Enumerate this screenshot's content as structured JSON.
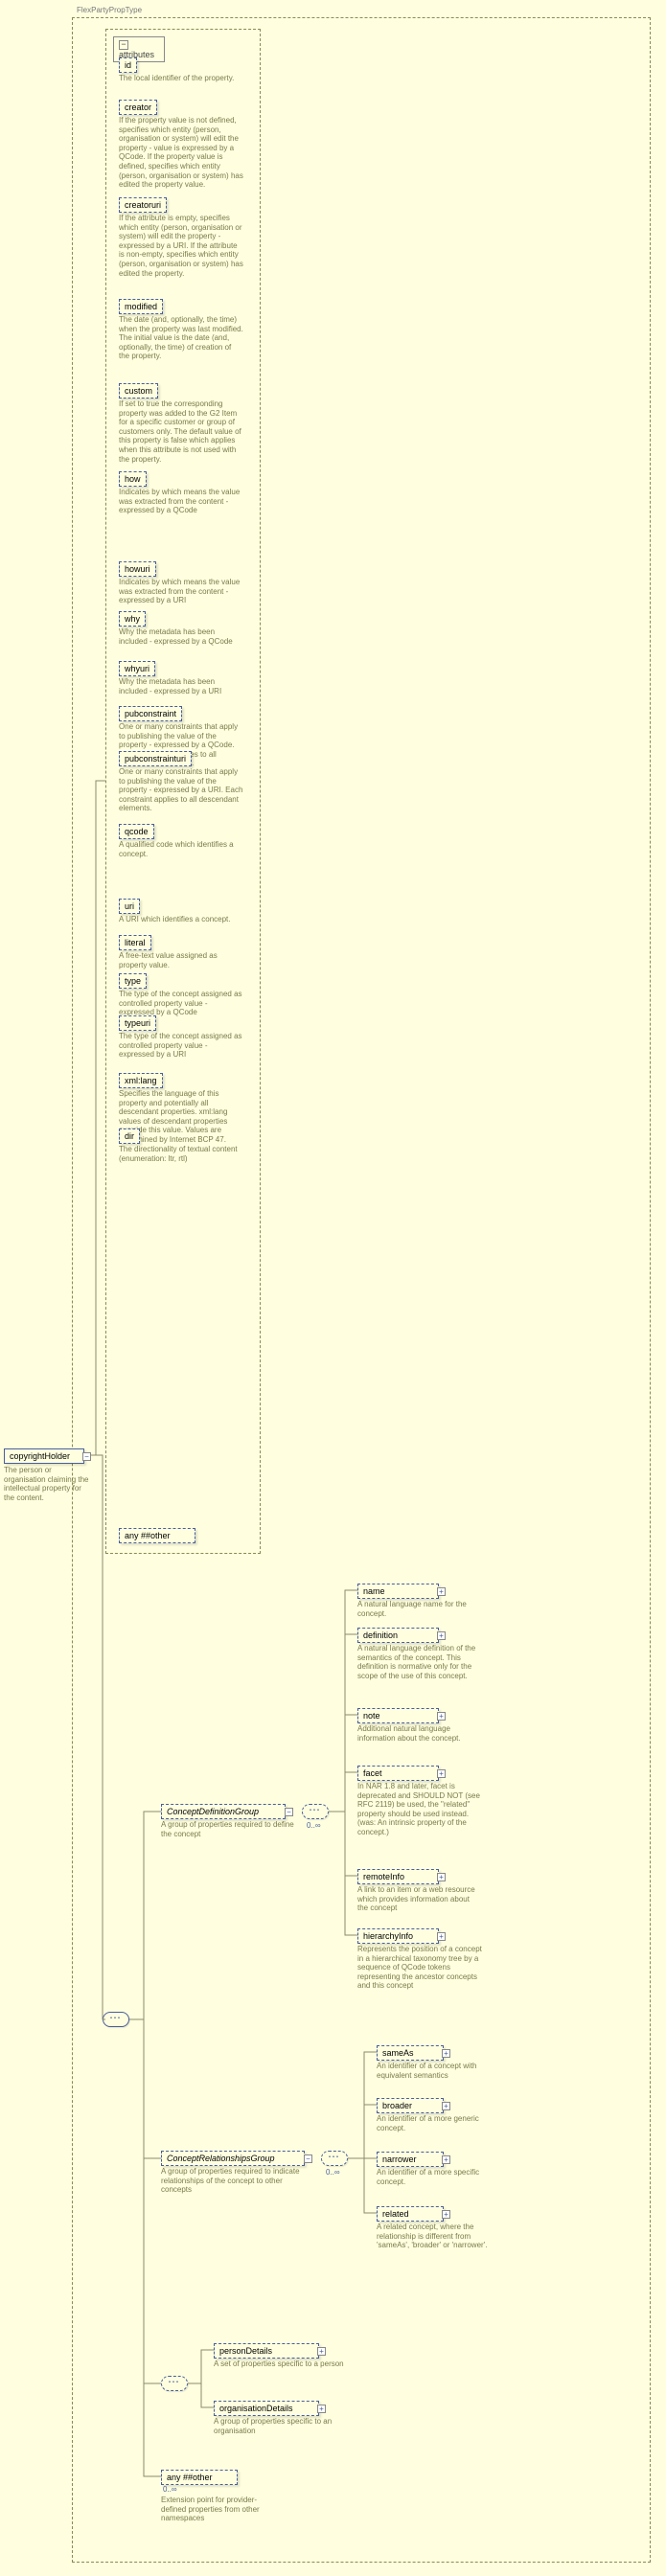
{
  "type_label": "FlexPartyPropType",
  "root": {
    "name": "copyrightHolder",
    "desc": "The person or organisation claiming the intellectual property for the content."
  },
  "attributes_label": "attributes",
  "attributes": [
    {
      "name": "id",
      "desc": "The local identifier of the property."
    },
    {
      "name": "creator",
      "desc": "If the property value is not defined, specifies which entity (person, organisation or system) will edit the property - value is expressed by a QCode. If the property value is defined, specifies which entity (person, organisation or system) has edited the property value."
    },
    {
      "name": "creatoruri",
      "desc": "If the attribute is empty, specifies which entity (person, organisation or system) will edit the property - expressed by a URI. If the attribute is non-empty, specifies which entity (person, organisation or system) has edited the property."
    },
    {
      "name": "modified",
      "desc": "The date (and, optionally, the time) when the property was last modified. The initial value is the date (and, optionally, the time) of creation of the property."
    },
    {
      "name": "custom",
      "desc": "If set to true the corresponding property was added to the G2 Item for a specific customer or group of customers only. The default value of this property is false which applies when this attribute is not used with the property."
    },
    {
      "name": "how",
      "desc": "Indicates by which means the value was extracted from the content - expressed by a QCode"
    },
    {
      "name": "howuri",
      "desc": "Indicates by which means the value was extracted from the content - expressed by a URI"
    },
    {
      "name": "why",
      "desc": "Why the metadata has been included - expressed by a QCode"
    },
    {
      "name": "whyuri",
      "desc": "Why the metadata has been included - expressed by a URI"
    },
    {
      "name": "pubconstraint",
      "desc": "One or many constraints that apply to publishing the value of the property - expressed by a QCode. Each constraint applies to all descendant elements."
    },
    {
      "name": "pubconstrainturi",
      "desc": "One or many constraints that apply to publishing the value of the property - expressed by a URI. Each constraint applies to all descendant elements."
    },
    {
      "name": "qcode",
      "desc": "A qualified code which identifies a concept."
    },
    {
      "name": "uri",
      "desc": "A URI which identifies a concept."
    },
    {
      "name": "literal",
      "desc": "A free-text value assigned as property value."
    },
    {
      "name": "type",
      "desc": "The type of the concept assigned as controlled property value - expressed by a QCode"
    },
    {
      "name": "typeuri",
      "desc": "The type of the concept assigned as controlled property value - expressed by a URI"
    },
    {
      "name": "xml:lang",
      "desc": "Specifies the language of this property and potentially all descendant properties. xml:lang values of descendant properties override this value. Values are determined by Internet BCP 47."
    },
    {
      "name": "dir",
      "desc": "The directionality of textual content (enumeration: ltr, rtl)"
    }
  ],
  "any_other_attr": "any ##other",
  "groups": {
    "def": {
      "name": "ConceptDefinitionGroup",
      "desc": "A group of properties required to define the concept"
    },
    "rel": {
      "name": "ConceptRelationshipsGroup",
      "desc": "A group of properties required to indicate relationships of the concept to other concepts"
    }
  },
  "def_children": [
    {
      "name": "name",
      "desc": "A natural language name for the concept."
    },
    {
      "name": "definition",
      "desc": "A natural language definition of the semantics of the concept. This definition is normative only for the scope of the use of this concept."
    },
    {
      "name": "note",
      "desc": "Additional natural language information about the concept."
    },
    {
      "name": "facet",
      "desc": "In NAR 1.8 and later, facet is deprecated and SHOULD NOT (see RFC 2119) be used, the \"related\" property should be used instead. (was: An intrinsic property of the concept.)"
    },
    {
      "name": "remoteInfo",
      "desc": "A link to an item or a web resource which provides information about the concept"
    },
    {
      "name": "hierarchyInfo",
      "desc": "Represents the position of a concept in a hierarchical taxonomy tree by a sequence of QCode tokens representing the ancestor concepts and this concept"
    }
  ],
  "rel_children": [
    {
      "name": "sameAs",
      "desc": "An identifier of a concept with equivalent semantics"
    },
    {
      "name": "broader",
      "desc": "An identifier of a more generic concept."
    },
    {
      "name": "narrower",
      "desc": "An identifier of a more specific concept."
    },
    {
      "name": "related",
      "desc": "A related concept, where the relationship is different from 'sameAs', 'broader' or 'narrower'."
    }
  ],
  "choice_children": [
    {
      "name": "personDetails",
      "desc": "A set of properties specific to a person"
    },
    {
      "name": "organisationDetails",
      "desc": "A group of properties specific to an organisation"
    }
  ],
  "any_other_el": {
    "name": "any ##other",
    "desc": "Extension point for provider-defined properties from other namespaces"
  },
  "cardinality": "0..∞",
  "colors": {
    "node_border": "#495e9a",
    "dashed_border": "#8a8a50",
    "desc_text": "#7a7a4a"
  }
}
